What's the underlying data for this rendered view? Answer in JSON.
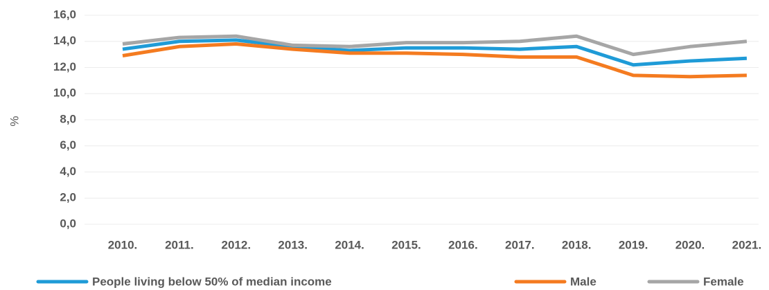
{
  "chart_data": {
    "type": "line",
    "y_label": "%",
    "categories": [
      "2010.",
      "2011.",
      "2012.",
      "2013.",
      "2014.",
      "2015.",
      "2016.",
      "2017.",
      "2018.",
      "2019.",
      "2020.",
      "2021."
    ],
    "series": [
      {
        "name": "People living below 50% of median income",
        "color": "#1f9bd7",
        "values": [
          13.4,
          14.0,
          14.1,
          13.6,
          13.3,
          13.5,
          13.5,
          13.4,
          13.6,
          12.2,
          12.5,
          12.7
        ]
      },
      {
        "name": "Male",
        "color": "#f47b20",
        "values": [
          12.9,
          13.6,
          13.8,
          13.4,
          13.1,
          13.1,
          13.0,
          12.8,
          12.8,
          11.4,
          11.3,
          11.4
        ]
      },
      {
        "name": "Female",
        "color": "#a6a6a6",
        "values": [
          13.8,
          14.3,
          14.4,
          13.7,
          13.6,
          13.9,
          13.9,
          14.0,
          14.4,
          13.0,
          13.6,
          14.0
        ]
      }
    ],
    "ylim": [
      0,
      16
    ],
    "yticks": [
      {
        "value": 0,
        "label": "0,0"
      },
      {
        "value": 2,
        "label": "2,0"
      },
      {
        "value": 4,
        "label": "4,0"
      },
      {
        "value": 6,
        "label": "6,0"
      },
      {
        "value": 8,
        "label": "8,0"
      },
      {
        "value": 10,
        "label": "10,0"
      },
      {
        "value": 12,
        "label": "12,0"
      },
      {
        "value": 14,
        "label": "14,0"
      },
      {
        "value": 16,
        "label": "16,0"
      }
    ],
    "grid": true,
    "legend": "bottom"
  }
}
